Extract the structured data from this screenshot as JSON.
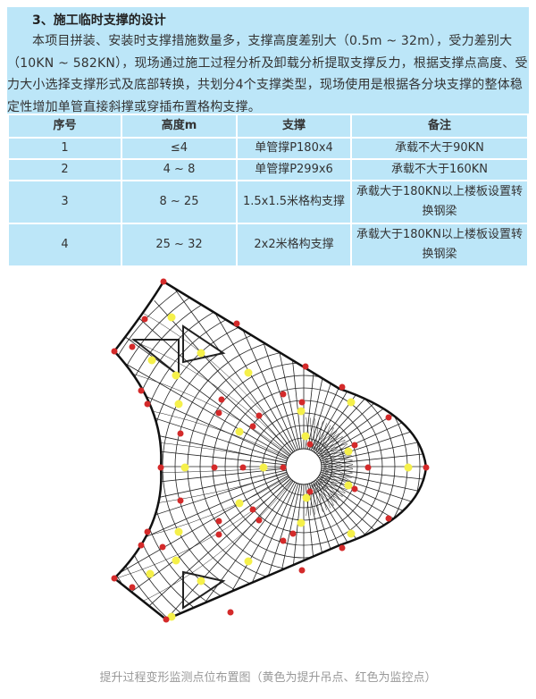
{
  "section": {
    "title": "3、施工临时支撑的设计",
    "paragraph": "本项目拼装、安装时支撑措施数量多，支撑高度差别大（0.5m ~ 32m），受力差别大（10KN ~ 582KN），现场通过施工过程分析及卸载分析提取支撑反力，根据支撑点高度、受力大小选择支撑形式及底部转换，共划分4个支撑类型，现场使用是根据各分块支撑的整体稳定性增加单管直接斜撑或穿插布置格构支撑。"
  },
  "table": {
    "headers": [
      "序号",
      "高度m",
      "支撑",
      "备注"
    ],
    "rows": [
      [
        "1",
        "≤4",
        "单管撑P180x4",
        "承载不大于90KN"
      ],
      [
        "2",
        "4 ~ 8",
        "单管撑P299x6",
        "承载不大于160KN"
      ],
      [
        "3",
        "8 ~ 25",
        "1.5x1.5米格构支撑",
        "承载大于180KN以上楼板设置转换钢梁"
      ],
      [
        "4",
        "25 ~ 32",
        "2x2米格构支撑",
        "承载大于180KN以上楼板设置转换钢梁"
      ]
    ]
  },
  "figure": {
    "caption": "提升过程变形监测点位布置图（黄色为提升吊点、红色为监控点）",
    "colors": {
      "lifting_point": "#f5f04a",
      "monitoring_point": "#d42a2a",
      "background": "#bce6f8"
    }
  }
}
